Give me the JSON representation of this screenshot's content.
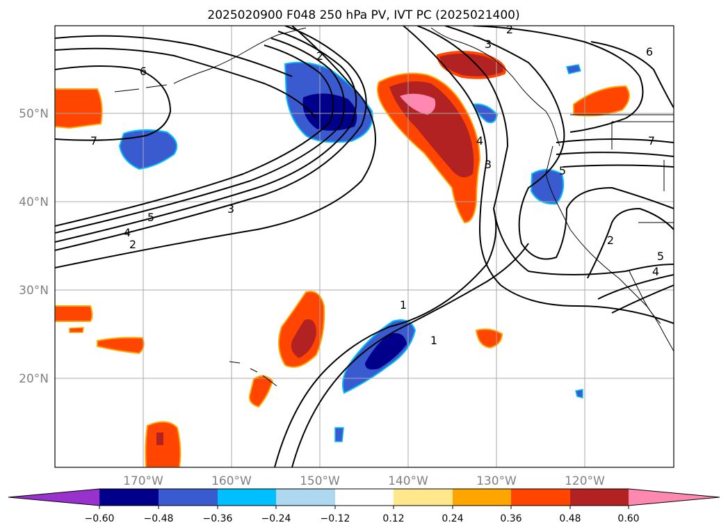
{
  "title": "2025020900 F048 250 hPa PV, IVT PC (2025021400)",
  "map": {
    "lon_labels": [
      "170°W",
      "160°W",
      "150°W",
      "140°W",
      "130°W",
      "120°W"
    ],
    "lat_labels": [
      "50°N",
      "40°N",
      "30°N",
      "20°N"
    ],
    "contour_labels": [
      "2",
      "3",
      "6",
      "7",
      "4",
      "5",
      "3",
      "2",
      "4",
      "3",
      "6",
      "5",
      "7",
      "2",
      "5",
      "4",
      "1",
      "1"
    ],
    "fill_colors": {
      "neg_strong": "#00008b",
      "neg_mid": "#3a5bcf",
      "neg_light": "#00bfff",
      "pos_light": "#ff4500",
      "pos_mid": "#b22222",
      "pos_strong": "#ff88b0",
      "pos_edge": "#ffa500"
    }
  },
  "colorbar": {
    "ticks": [
      "−0.60",
      "−0.48",
      "−0.36",
      "−0.24",
      "−0.12",
      "0.12",
      "0.24",
      "0.36",
      "0.48",
      "0.60"
    ],
    "colors": [
      "#9932cc",
      "#00008b",
      "#3a5bcf",
      "#00bfff",
      "#add8f0",
      "#ffffff",
      "#ffe88c",
      "#ffa500",
      "#ff4500",
      "#b22222",
      "#ff88b0"
    ]
  }
}
